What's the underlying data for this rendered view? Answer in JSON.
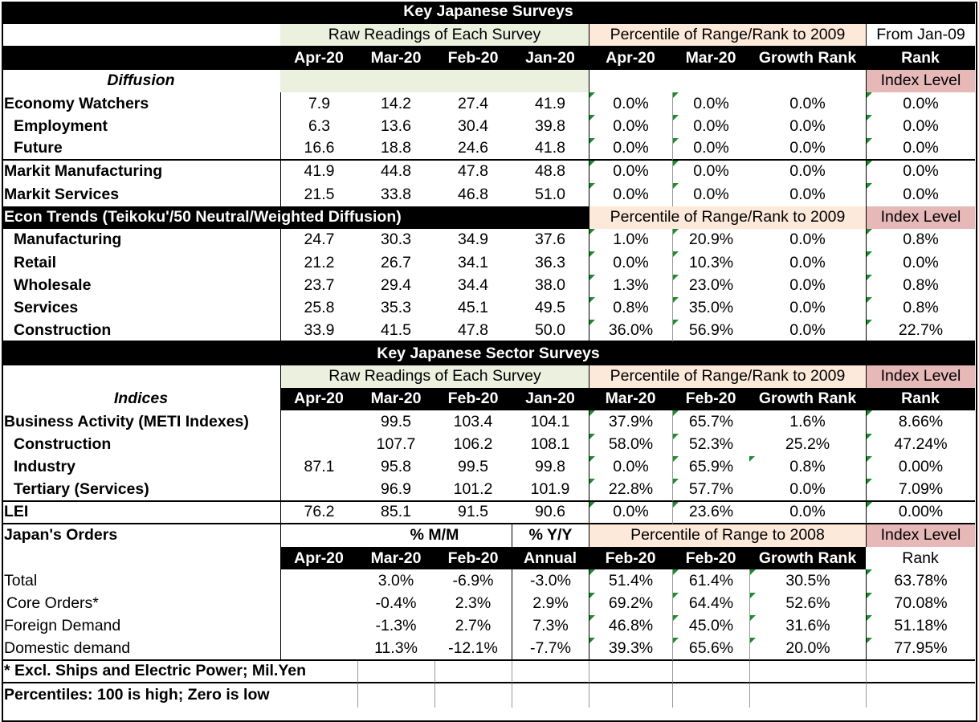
{
  "sheet": {
    "title": "Key Japanese Surveys",
    "raw_readings": "Raw Readings of Each Survey",
    "pct_range_2009": "Percentile of Range/Rank to 2009",
    "from_jan09": "From Jan-09",
    "cols": {
      "apr20": "Apr-20",
      "mar20": "Mar-20",
      "feb20": "Feb-20",
      "jan20": "Jan-20",
      "growth_rank": "Growth Rank",
      "rank": "Rank"
    },
    "diffusion": "Diffusion",
    "index_level": "Index Level",
    "rows1": [
      {
        "label": "Economy Watchers",
        "v": [
          "7.9",
          "14.2",
          "27.4",
          "41.9",
          "0.0%",
          "0.0%",
          "0.0%",
          "0.0%"
        ]
      },
      {
        "label": "Employment",
        "v": [
          "6.3",
          "13.6",
          "30.4",
          "39.8",
          "0.0%",
          "0.0%",
          "0.0%",
          "0.0%"
        ]
      },
      {
        "label": "Future",
        "v": [
          "16.6",
          "18.8",
          "24.6",
          "41.8",
          "0.0%",
          "0.0%",
          "0.0%",
          "0.0%"
        ]
      },
      {
        "label": "Markit Manufacturing",
        "v": [
          "41.9",
          "44.8",
          "47.8",
          "48.8",
          "0.0%",
          "0.0%",
          "0.0%",
          "0.0%"
        ]
      },
      {
        "label": "Markit Services",
        "v": [
          "21.5",
          "33.8",
          "46.8",
          "51.0",
          "0.0%",
          "0.0%",
          "0.0%",
          "0.0%"
        ]
      }
    ],
    "econ_trends": "Econ Trends (Teikoku'/50 Neutral/Weighted Diffusion)",
    "rows2": [
      {
        "label": "Manufacturing",
        "v": [
          "24.7",
          "30.3",
          "34.9",
          "37.6",
          "1.0%",
          "20.9%",
          "0.0%",
          "0.8%"
        ]
      },
      {
        "label": "Retail",
        "v": [
          "21.2",
          "26.7",
          "34.1",
          "36.3",
          "0.0%",
          "10.3%",
          "0.0%",
          "0.0%"
        ]
      },
      {
        "label": "Wholesale",
        "v": [
          "23.7",
          "29.4",
          "34.4",
          "38.0",
          "1.3%",
          "23.0%",
          "0.0%",
          "0.8%"
        ]
      },
      {
        "label": "Services",
        "v": [
          "25.8",
          "35.3",
          "45.1",
          "49.5",
          "0.8%",
          "35.0%",
          "0.0%",
          "0.8%"
        ]
      },
      {
        "label": "Construction",
        "v": [
          "33.9",
          "41.5",
          "47.8",
          "50.0",
          "36.0%",
          "56.9%",
          "0.0%",
          "22.7%"
        ]
      }
    ],
    "title2": "Key Japanese Sector Surveys",
    "indices": "Indices",
    "rows3": [
      {
        "label": "Business Activity (METI Indexes)",
        "v": [
          "",
          "99.5",
          "103.4",
          "104.1",
          "37.9%",
          "65.7%",
          "1.6%",
          "8.66%"
        ]
      },
      {
        "label": "Construction",
        "v": [
          "",
          "107.7",
          "106.2",
          "108.1",
          "58.0%",
          "52.3%",
          "25.2%",
          "47.24%"
        ]
      },
      {
        "label": "Industry",
        "v": [
          "87.1",
          "95.8",
          "99.5",
          "99.8",
          "0.0%",
          "65.9%",
          "0.8%",
          "0.00%"
        ]
      },
      {
        "label": "Tertiary (Services)",
        "v": [
          "",
          "96.9",
          "101.2",
          "101.9",
          "22.8%",
          "57.7%",
          "0.0%",
          "7.09%"
        ]
      }
    ],
    "lei": {
      "label": "LEI",
      "v": [
        "76.2",
        "85.1",
        "91.5",
        "90.6",
        "0.0%",
        "23.6%",
        "0.0%",
        "0.00%"
      ]
    },
    "orders": "Japan's Orders",
    "pct_mm": "% M/M",
    "pct_yy": "% Y/Y",
    "pct_range_2008": "Percentile of Range to 2008",
    "annual": "Annual",
    "rows4": [
      {
        "label": "Total",
        "v": [
          "",
          "3.0%",
          "-6.9%",
          "-3.0%",
          "51.4%",
          "61.4%",
          "30.5%",
          "63.78%"
        ]
      },
      {
        "label": "Core Orders*",
        "v": [
          "",
          "-0.4%",
          "2.3%",
          "2.9%",
          "69.2%",
          "64.4%",
          "52.6%",
          "70.08%"
        ]
      },
      {
        "label": "Foreign Demand",
        "v": [
          "",
          "-1.3%",
          "2.7%",
          "7.3%",
          "46.8%",
          "45.0%",
          "31.6%",
          "51.18%"
        ]
      },
      {
        "label": "Domestic demand",
        "v": [
          "",
          "11.3%",
          "-12.1%",
          "-7.7%",
          "39.3%",
          "65.6%",
          "20.0%",
          "77.95%"
        ]
      }
    ],
    "note1": "* Excl. Ships and Electric Power; Mil.Yen",
    "note2": "Percentiles: 100 is high; Zero is low"
  }
}
